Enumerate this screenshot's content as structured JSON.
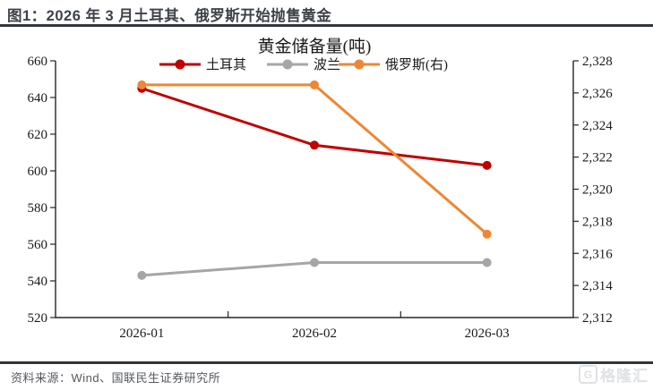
{
  "header": {
    "title": "图1：2026 年 3 月土耳其、俄罗斯开始抛售黄金"
  },
  "footer": {
    "source": "资料来源：Wind、国联民生证券研究所"
  },
  "watermark": {
    "icon": "G",
    "text": "格隆汇"
  },
  "chart_data": {
    "type": "line",
    "title": "黄金储备量(吨)",
    "categories": [
      "2026-01",
      "2026-02",
      "2026-03"
    ],
    "series": [
      {
        "name": "土耳其",
        "axis": "left",
        "color": "#c00000",
        "values": [
          645,
          614,
          603
        ]
      },
      {
        "name": "波兰",
        "axis": "left",
        "color": "#a6a6a6",
        "values": [
          543,
          550,
          550
        ]
      },
      {
        "name": "俄罗斯(右)",
        "axis": "right",
        "color": "#ed8733",
        "values": [
          2326.5,
          2326.5,
          2317.2
        ]
      }
    ],
    "left_axis": {
      "min": 520,
      "max": 660,
      "step": 20
    },
    "right_axis": {
      "min": 2312,
      "max": 2328,
      "step": 2
    },
    "legend_position": "top",
    "grid": false,
    "axis_color": "#262626",
    "text_color": "#1a1a1a"
  }
}
